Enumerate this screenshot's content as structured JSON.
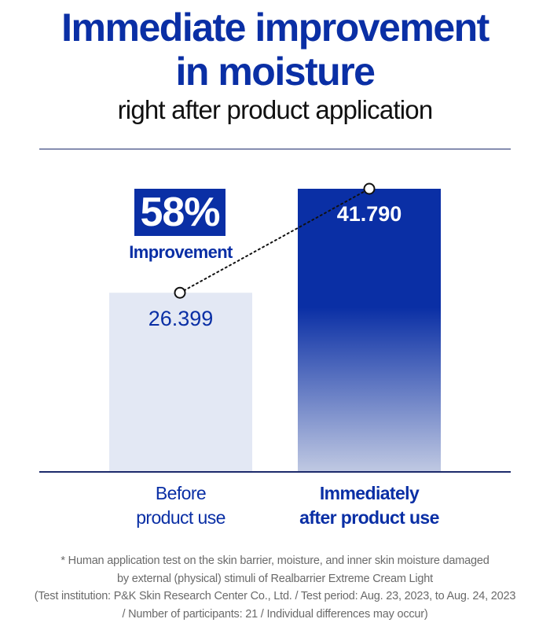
{
  "title": {
    "line1": "Immediate improvement",
    "line2": "in moisture",
    "subtitle": "right after product application"
  },
  "improvement": {
    "value": "58%",
    "label": "Improvement"
  },
  "chart_data": {
    "type": "bar",
    "categories": [
      [
        "Before",
        "product use"
      ],
      [
        "Immediately",
        "after product use"
      ]
    ],
    "values": [
      26.399,
      41.79
    ],
    "value_labels": [
      "26.399",
      "41.790"
    ],
    "ylim": [
      0,
      41.79
    ],
    "colors": {
      "before": "#e3e8f4",
      "after_top": "#0a2fa5",
      "after_bottom": "#bfc8e2",
      "label_dark": "#0a2fa5",
      "label_light": "#ffffff"
    },
    "grid": false,
    "legend": "none"
  },
  "footnote": {
    "line1": "* Human application test on the skin barrier, moisture, and inner skin moisture damaged",
    "line2": "by external (physical) stimuli of Realbarrier Extreme Cream Light",
    "line3": "(Test institution: P&K Skin Research Center Co., Ltd. / Test period: Aug. 23, 2023, to Aug. 24, 2023",
    "line4": "/ Number of participants: 21 / Individual differences may occur)"
  }
}
